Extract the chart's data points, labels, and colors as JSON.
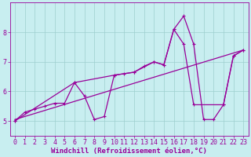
{
  "xlabel": "Windchill (Refroidissement éolien,°C)",
  "background_color": "#c8eef0",
  "grid_color": "#9dcfce",
  "line_color": "#990099",
  "xlim": [
    -0.5,
    23.5
  ],
  "ylim": [
    4.5,
    9.0
  ],
  "yticks": [
    5,
    6,
    7,
    8
  ],
  "xticks": [
    0,
    1,
    2,
    3,
    4,
    5,
    6,
    7,
    8,
    9,
    10,
    11,
    12,
    13,
    14,
    15,
    16,
    17,
    18,
    19,
    20,
    21,
    22,
    23
  ],
  "line1_x": [
    0,
    1,
    2,
    3,
    4,
    5,
    6,
    7,
    8,
    9,
    10,
    11,
    12,
    13,
    14,
    15,
    16,
    17,
    18,
    19,
    20,
    21,
    22,
    23
  ],
  "line1_y": [
    5.0,
    5.3,
    5.4,
    5.5,
    5.6,
    5.6,
    6.3,
    5.85,
    5.05,
    5.15,
    6.55,
    6.6,
    6.65,
    6.85,
    7.0,
    6.9,
    8.1,
    8.55,
    7.6,
    5.05,
    5.05,
    5.55,
    7.2,
    7.4
  ],
  "line2_x": [
    0,
    6,
    10,
    12,
    14,
    15,
    16,
    17,
    18,
    21,
    22,
    23
  ],
  "line2_y": [
    5.0,
    6.3,
    6.55,
    6.65,
    7.0,
    6.9,
    8.1,
    7.6,
    5.55,
    5.55,
    7.2,
    7.4
  ],
  "line3_x": [
    0,
    23
  ],
  "line3_y": [
    5.05,
    7.4
  ],
  "line_width": 0.9,
  "marker": "+",
  "marker_size": 3.5,
  "font_size": 6,
  "label_fontsize": 6.5
}
